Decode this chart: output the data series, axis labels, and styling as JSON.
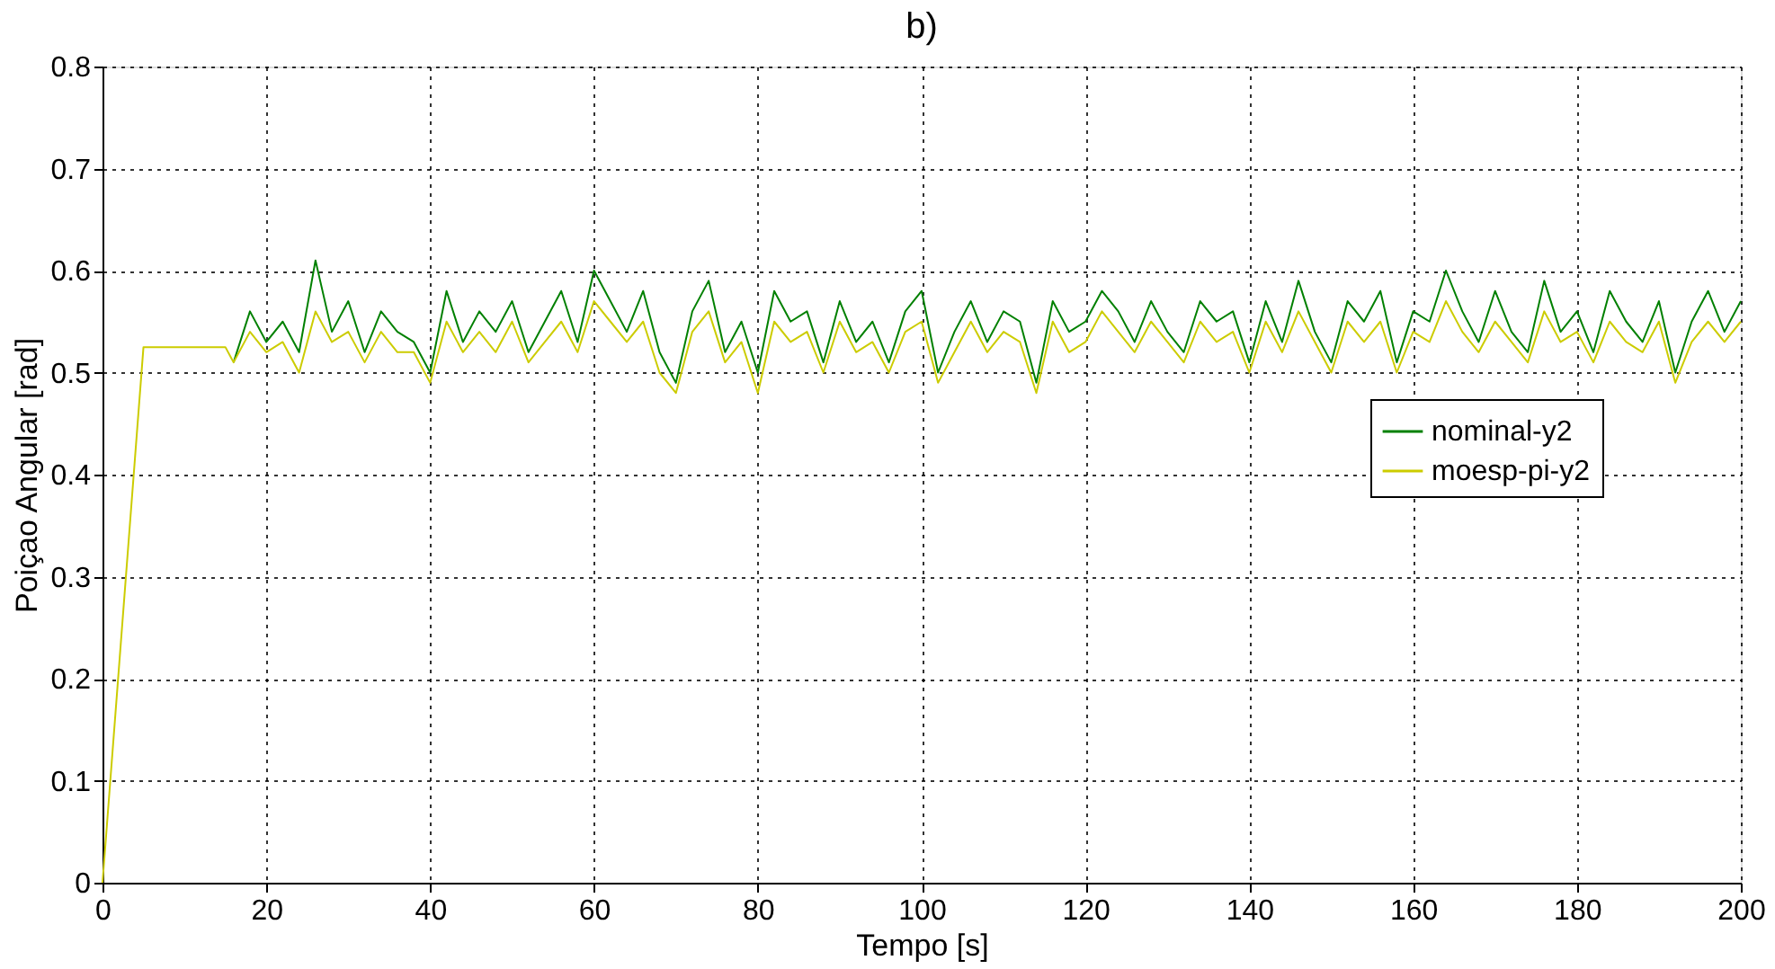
{
  "chart_data": {
    "type": "line",
    "title": "b)",
    "xlabel": "Tempo [s]",
    "ylabel": "Poiçao Angular [rad]",
    "x": [
      0,
      5,
      15,
      16,
      18,
      20,
      22,
      24,
      26,
      28,
      30,
      32,
      34,
      36,
      38,
      40,
      42,
      44,
      46,
      48,
      50,
      52,
      54,
      56,
      58,
      60,
      62,
      64,
      66,
      68,
      70,
      72,
      74,
      76,
      78,
      80,
      82,
      84,
      86,
      88,
      90,
      92,
      94,
      96,
      98,
      100,
      102,
      104,
      106,
      108,
      110,
      112,
      114,
      116,
      118,
      120,
      122,
      124,
      126,
      128,
      130,
      132,
      134,
      136,
      138,
      140,
      142,
      144,
      146,
      148,
      150,
      152,
      154,
      156,
      158,
      160,
      162,
      164,
      166,
      168,
      170,
      172,
      174,
      176,
      178,
      180,
      182,
      184,
      186,
      188,
      190,
      192,
      194,
      196,
      198,
      200
    ],
    "series": [
      {
        "name": "nominal-y2",
        "color": "#008000",
        "values": [
          null,
          null,
          null,
          0.51,
          0.56,
          0.53,
          0.55,
          0.52,
          0.61,
          0.54,
          0.57,
          0.52,
          0.56,
          0.54,
          0.53,
          0.5,
          0.58,
          0.53,
          0.56,
          0.54,
          0.57,
          0.52,
          0.55,
          0.58,
          0.53,
          0.6,
          0.57,
          0.54,
          0.58,
          0.52,
          0.49,
          0.56,
          0.59,
          0.52,
          0.55,
          0.5,
          0.58,
          0.55,
          0.56,
          0.51,
          0.57,
          0.53,
          0.55,
          0.51,
          0.56,
          0.58,
          0.5,
          0.54,
          0.57,
          0.53,
          0.56,
          0.55,
          0.49,
          0.57,
          0.54,
          0.55,
          0.58,
          0.56,
          0.53,
          0.57,
          0.54,
          0.52,
          0.57,
          0.55,
          0.56,
          0.51,
          0.57,
          0.53,
          0.59,
          0.54,
          0.51,
          0.57,
          0.55,
          0.58,
          0.51,
          0.56,
          0.55,
          0.6,
          0.56,
          0.53,
          0.58,
          0.54,
          0.52,
          0.59,
          0.54,
          0.56,
          0.52,
          0.58,
          0.55,
          0.53,
          0.57,
          0.5,
          0.55,
          0.58,
          0.54,
          0.57
        ]
      },
      {
        "name": "moesp-pi-y2",
        "color": "#cccc00",
        "values": [
          0,
          0.525,
          0.525,
          0.51,
          0.54,
          0.52,
          0.53,
          0.5,
          0.56,
          0.53,
          0.54,
          0.51,
          0.54,
          0.52,
          0.52,
          0.49,
          0.55,
          0.52,
          0.54,
          0.52,
          0.55,
          0.51,
          0.53,
          0.55,
          0.52,
          0.57,
          0.55,
          0.53,
          0.55,
          0.5,
          0.48,
          0.54,
          0.56,
          0.51,
          0.53,
          0.48,
          0.55,
          0.53,
          0.54,
          0.5,
          0.55,
          0.52,
          0.53,
          0.5,
          0.54,
          0.55,
          0.49,
          0.52,
          0.55,
          0.52,
          0.54,
          0.53,
          0.48,
          0.55,
          0.52,
          0.53,
          0.56,
          0.54,
          0.52,
          0.55,
          0.53,
          0.51,
          0.55,
          0.53,
          0.54,
          0.5,
          0.55,
          0.52,
          0.56,
          0.53,
          0.5,
          0.55,
          0.53,
          0.55,
          0.5,
          0.54,
          0.53,
          0.57,
          0.54,
          0.52,
          0.55,
          0.53,
          0.51,
          0.56,
          0.53,
          0.54,
          0.51,
          0.55,
          0.53,
          0.52,
          0.55,
          0.49,
          0.53,
          0.55,
          0.53,
          0.55
        ]
      }
    ],
    "xlim": [
      0,
      200
    ],
    "xticks": [
      0,
      20,
      40,
      60,
      80,
      100,
      120,
      140,
      160,
      180,
      200
    ],
    "ylim": [
      0,
      0.8
    ],
    "yticks": [
      0,
      0.1,
      0.2,
      0.3,
      0.4,
      0.5,
      0.6,
      0.7,
      0.8
    ],
    "grid": true,
    "legend": "right",
    "marker": "none",
    "line_style": "solid"
  }
}
